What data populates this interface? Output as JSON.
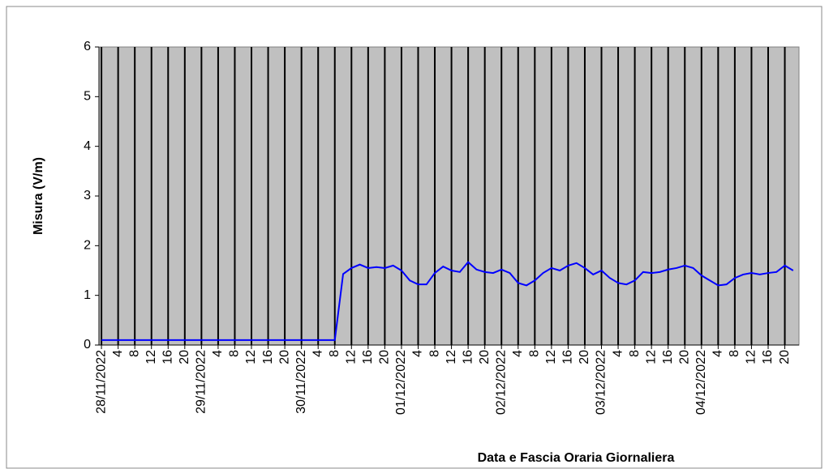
{
  "chart_data": {
    "type": "line",
    "y_label": "Misura (V/m)",
    "x_label": "Data e Fascia Oraria Giornaliera",
    "categories": [
      "28/11/2022",
      null,
      "4",
      null,
      "8",
      null,
      "12",
      null,
      "16",
      null,
      "20",
      null,
      "29/11/2022",
      null,
      "4",
      null,
      "8",
      null,
      "12",
      null,
      "16",
      null,
      "20",
      null,
      "30/11/2022",
      null,
      "4",
      null,
      "8",
      null,
      "12",
      null,
      "16",
      null,
      "20",
      null,
      "01/12/2022",
      null,
      "4",
      null,
      "8",
      null,
      "12",
      null,
      "16",
      null,
      "20",
      null,
      "02/12/2022",
      null,
      "4",
      null,
      "8",
      null,
      "12",
      null,
      "16",
      null,
      "20",
      null,
      "03/12/2022",
      null,
      "4",
      null,
      "8",
      null,
      "12",
      null,
      "16",
      null,
      "20",
      null,
      "04/12/2022",
      null,
      "4",
      null,
      "8",
      null,
      "12",
      null,
      "16",
      null,
      "20",
      null
    ],
    "series": [
      {
        "name": "Misura",
        "color": "#0000ff",
        "values": [
          0.1,
          0.1,
          0.1,
          0.1,
          0.1,
          0.1,
          0.1,
          0.1,
          0.1,
          0.1,
          0.1,
          0.1,
          0.1,
          0.1,
          0.1,
          0.1,
          0.1,
          0.1,
          0.1,
          0.1,
          0.1,
          0.1,
          0.1,
          0.1,
          0.1,
          0.1,
          0.1,
          0.1,
          0.1,
          1.43,
          1.55,
          1.62,
          1.55,
          1.57,
          1.55,
          1.6,
          1.5,
          1.3,
          1.22,
          1.22,
          1.45,
          1.58,
          1.5,
          1.47,
          1.67,
          1.52,
          1.47,
          1.45,
          1.52,
          1.45,
          1.25,
          1.2,
          1.3,
          1.45,
          1.55,
          1.5,
          1.6,
          1.65,
          1.55,
          1.42,
          1.5,
          1.35,
          1.25,
          1.22,
          1.3,
          1.47,
          1.45,
          1.47,
          1.52,
          1.55,
          1.6,
          1.55,
          1.4,
          1.3,
          1.2,
          1.22,
          1.35,
          1.42,
          1.45,
          1.42,
          1.45,
          1.47,
          1.6,
          1.5
        ]
      }
    ],
    "ylim": [
      0,
      6
    ],
    "yticks": [
      0,
      1,
      2,
      3,
      4,
      5,
      6
    ],
    "plot_background": "#c0c0c0",
    "grid": true
  }
}
